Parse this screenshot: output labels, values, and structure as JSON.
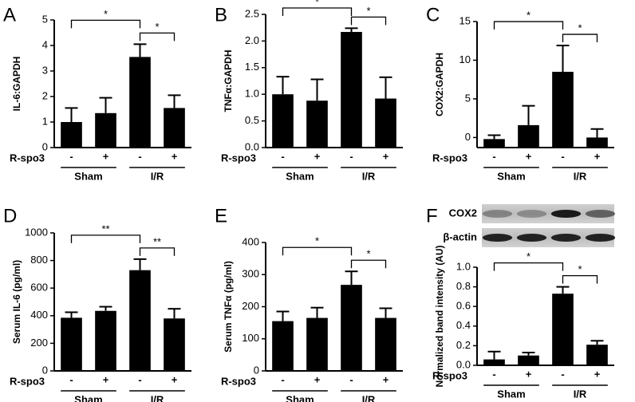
{
  "chart_data": [
    {
      "type": "bar",
      "panel": "A",
      "ylabel": "IL-6:GAPDH",
      "row_label": "R-spo3",
      "categories": [
        "-",
        "+",
        "-",
        "+"
      ],
      "groups": [
        "Sham",
        "I/R"
      ],
      "values": [
        1.0,
        1.35,
        3.55,
        1.55
      ],
      "errors": [
        0.55,
        0.6,
        0.5,
        0.5
      ],
      "color": "#000000",
      "ylim": [
        0,
        5
      ],
      "yticks": [
        0,
        1,
        2,
        3,
        4,
        5
      ],
      "annotations": [
        "*",
        "*"
      ]
    },
    {
      "type": "bar",
      "panel": "B",
      "ylabel": "TNFα:GAPDH",
      "row_label": "R-spo3",
      "categories": [
        "-",
        "+",
        "-",
        "+"
      ],
      "groups": [
        "Sham",
        "I/R"
      ],
      "values": [
        1.0,
        0.88,
        2.17,
        0.92
      ],
      "errors": [
        0.33,
        0.4,
        0.07,
        0.4
      ],
      "color": "#000000",
      "ylim": [
        0,
        2.5
      ],
      "yticks": [
        {
          "value": 0,
          "label": "0.0"
        },
        0.5,
        {
          "value": 1,
          "label": "1.0"
        },
        1.5,
        {
          "value": 2,
          "label": "2.0"
        },
        2.5
      ],
      "annotations": [
        "*",
        "*"
      ]
    },
    {
      "type": "bar",
      "panel": "C",
      "ylabel": "COX2:GAPDH",
      "row_label": "R-spo3",
      "categories": [
        "-",
        "+",
        "-",
        "+"
      ],
      "groups": [
        "Sham",
        "I/R"
      ],
      "values": [
        -0.2,
        1.6,
        8.5,
        0
      ],
      "errors": [
        0.5,
        2.5,
        3.4,
        1.1
      ],
      "color": "#000000",
      "ylim": [
        -1.3,
        15
      ],
      "yticks": [
        0,
        5,
        10,
        15
      ],
      "annotations": [
        "*",
        "*"
      ]
    },
    {
      "type": "bar",
      "panel": "D",
      "ylabel": "Serum IL-6 (pg/ml)",
      "row_label": "R-spo3",
      "categories": [
        "-",
        "+",
        "-",
        "+"
      ],
      "groups": [
        "Sham",
        "I/R"
      ],
      "values": [
        385,
        435,
        730,
        380
      ],
      "errors": [
        40,
        30,
        80,
        70
      ],
      "color": "#000000",
      "ylim": [
        0,
        1000
      ],
      "yticks": [
        0,
        200,
        400,
        600,
        800,
        1000
      ],
      "annotations": [
        "**",
        "**"
      ]
    },
    {
      "type": "bar",
      "panel": "E",
      "ylabel": "Serum TNFα (pg/ml)",
      "row_label": "R-spo3",
      "categories": [
        "-",
        "+",
        "-",
        "+"
      ],
      "groups": [
        "Sham",
        "I/R"
      ],
      "values": [
        155,
        165,
        268,
        165
      ],
      "errors": [
        30,
        32,
        42,
        30
      ],
      "color": "#000000",
      "ylim": [
        0,
        400
      ],
      "yticks": [
        0,
        100,
        200,
        300,
        400
      ],
      "annotations": [
        "*",
        "*"
      ]
    },
    {
      "type": "bar",
      "panel": "F",
      "ylabel": "Normalized band intensity (AU)",
      "row_label": "R-spo3",
      "categories": [
        "-",
        "+",
        "-",
        "+"
      ],
      "groups": [
        "Sham",
        "I/R"
      ],
      "blot_labels": [
        "COX2",
        "β-actin"
      ],
      "values": [
        0.06,
        0.1,
        0.73,
        0.21
      ],
      "errors": [
        0.08,
        0.03,
        0.07,
        0.04
      ],
      "color": "#000000",
      "ylim": [
        0,
        1
      ],
      "yticks": [
        {
          "value": 0,
          "label": "0.0"
        },
        0.2,
        0.4,
        0.6,
        0.8,
        {
          "value": 1,
          "label": "1.0"
        }
      ],
      "annotations": [
        "*",
        "*"
      ]
    }
  ]
}
